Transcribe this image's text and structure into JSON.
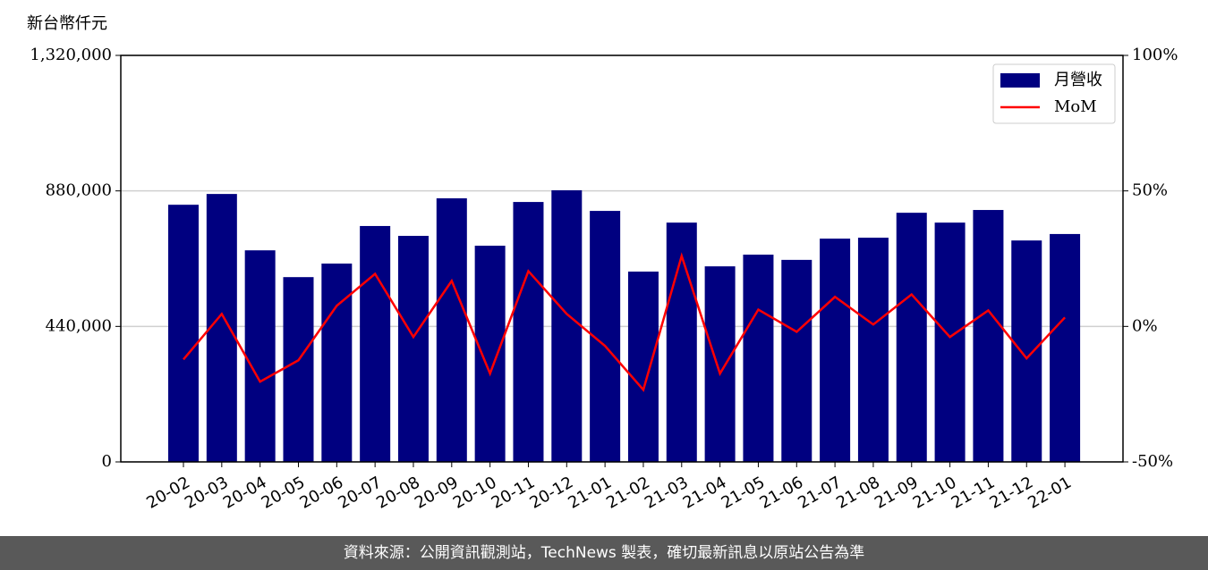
{
  "chart_data": {
    "type": "combo",
    "ylabel": "新台幣仟元",
    "categories": [
      "20-02",
      "20-03",
      "20-04",
      "20-05",
      "20-06",
      "20-07",
      "20-08",
      "20-09",
      "20-10",
      "20-11",
      "20-12",
      "21-01",
      "21-02",
      "21-03",
      "21-04",
      "21-05",
      "21-06",
      "21-07",
      "21-08",
      "21-09",
      "21-10",
      "21-11",
      "21-12",
      "22-01"
    ],
    "series": [
      {
        "name": "月營收",
        "type": "bar",
        "color": "#000080",
        "values": [
          835000,
          870000,
          687000,
          600000,
          644000,
          766000,
          734000,
          856000,
          702000,
          844000,
          882000,
          815000,
          618000,
          777000,
          635000,
          673000,
          656000,
          725000,
          728000,
          809000,
          777000,
          818000,
          719000,
          740000
        ]
      },
      {
        "name": "MoM",
        "type": "line",
        "axis": "y2",
        "color": "#ff0000",
        "values": [
          -12.2,
          4.6,
          -20.4,
          -12.5,
          7.6,
          19.4,
          -3.9,
          16.8,
          -17.4,
          20.4,
          4.6,
          -7.2,
          -23.4,
          26.0,
          -17.4,
          6.2,
          -2.0,
          10.9,
          0.7,
          11.8,
          -3.9,
          5.9,
          -11.8,
          3.3
        ]
      }
    ],
    "ylim": [
      0,
      1320000
    ],
    "yticks": [
      0,
      {
        "value": 440000,
        "label": "440,000"
      },
      {
        "value": 880000,
        "label": "880,000"
      },
      {
        "value": 1320000,
        "label": "1,320,000"
      }
    ],
    "y2lim": [
      -50,
      100
    ],
    "y2ticks": [
      {
        "value": -50,
        "label": "-50%"
      },
      {
        "value": 0,
        "label": "0%"
      },
      {
        "value": 50,
        "label": "50%"
      },
      {
        "value": 100,
        "label": "100%"
      }
    ],
    "grid": true,
    "legend": "upper right"
  },
  "footer": {
    "text": "資料來源：公開資訊觀測站，TechNews 製表，確切最新訊息以原站公告為準"
  }
}
